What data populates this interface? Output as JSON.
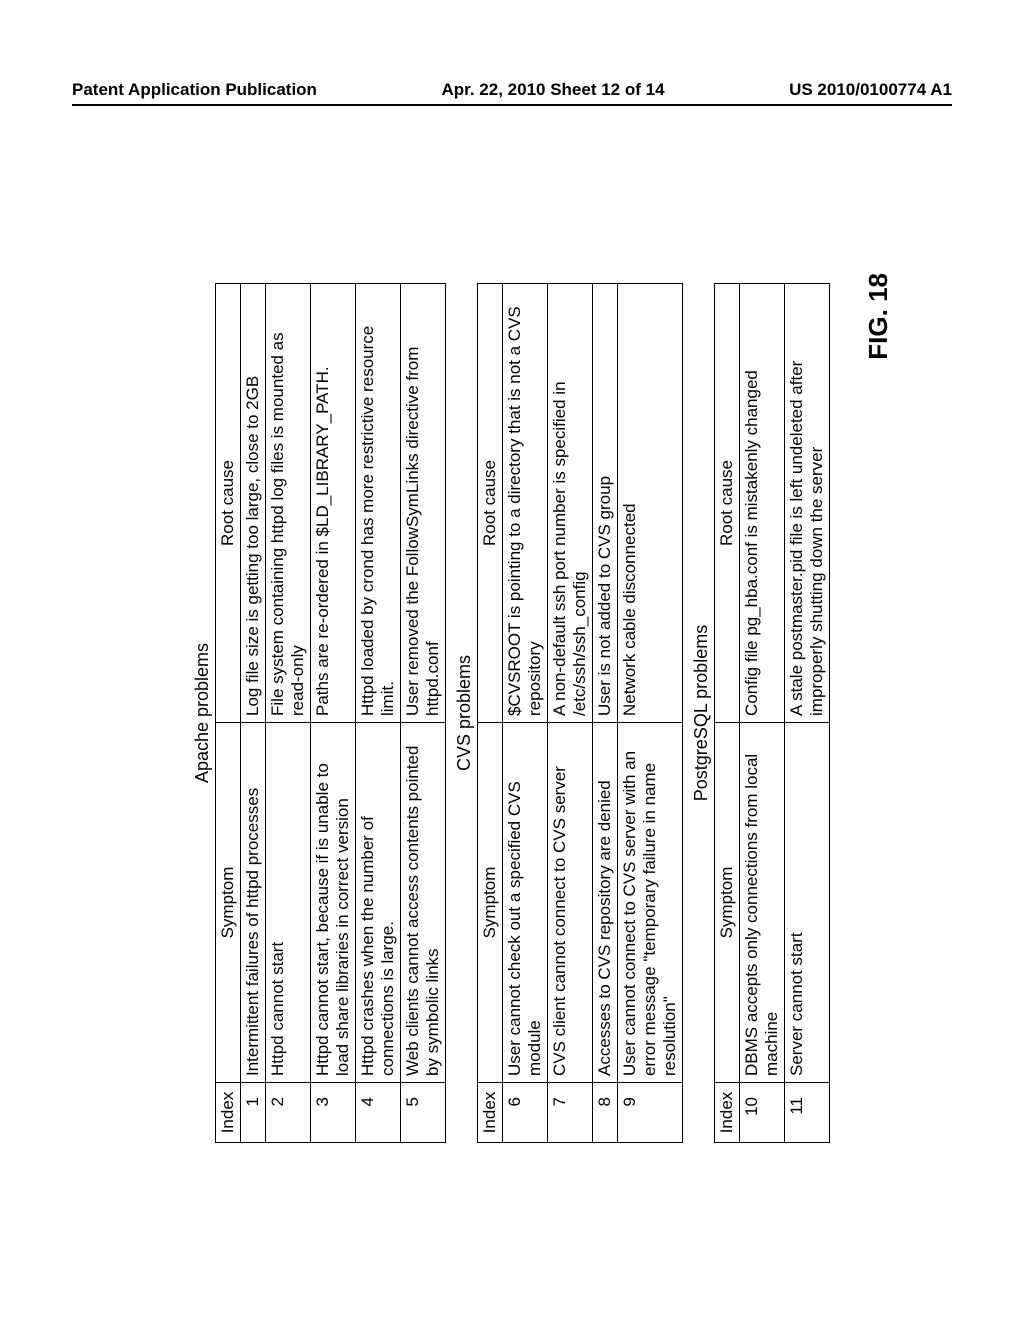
{
  "header": {
    "left": "Patent Application Publication",
    "center": "Apr. 22, 2010  Sheet 12 of 14",
    "right": "US 2010/0100774 A1"
  },
  "figure_label": "FIG. 18",
  "sections": [
    {
      "title": "Apache problems",
      "columns": [
        "Index",
        "Symptom",
        "Root cause"
      ],
      "rows": [
        {
          "index": "1",
          "symptom": "Intermittent failures of httpd processes",
          "cause": "Log file size is getting too large, close to 2GB"
        },
        {
          "index": "2",
          "symptom": "Httpd cannot start",
          "cause": "File system containing httpd log files is mounted as read-only"
        },
        {
          "index": "3",
          "symptom": "Httpd cannot start, because if is unable to load share libraries in correct version",
          "cause": "Paths are re-ordered in $LD_LIBRARY_PATH."
        },
        {
          "index": "4",
          "symptom": "Httpd crashes when the number of connections is large.",
          "cause": "Httpd loaded by crond has more restrictive resource limit."
        },
        {
          "index": "5",
          "symptom": "Web clients cannot access contents pointed by symbolic links",
          "cause": "User removed the FollowSymLinks directive from httpd.conf"
        }
      ]
    },
    {
      "title": "CVS problems",
      "columns": [
        "Index",
        "Symptom",
        "Root cause"
      ],
      "rows": [
        {
          "index": "6",
          "symptom": "User cannot check out a specified CVS module",
          "cause": "$CVSROOT is pointing to a directory that is not a CVS repository"
        },
        {
          "index": "7",
          "symptom": "CVS client cannot connect to CVS server",
          "cause": "A non-default ssh port number is specified in /etc/ssh/ssh_config"
        },
        {
          "index": "8",
          "symptom": "Accesses to CVS repository are denied",
          "cause": "User is not added to CVS group"
        },
        {
          "index": "9",
          "symptom": "User cannot connect to CVS server with an error message \"temporary failure in name resolution\"",
          "cause": "Network cable  disconnected"
        }
      ]
    },
    {
      "title": "PostgreSQL problems",
      "columns": [
        "Index",
        "Symptom",
        "Root cause"
      ],
      "rows": [
        {
          "index": "10",
          "symptom": "DBMS accepts only connections from local machine",
          "cause": "Config file pg_hba.conf is mistakenly changed"
        },
        {
          "index": "11",
          "symptom": "Server cannot start",
          "cause": "A stale postmaster.pid file is left undeleted after improperly shutting down the server"
        }
      ]
    }
  ]
}
